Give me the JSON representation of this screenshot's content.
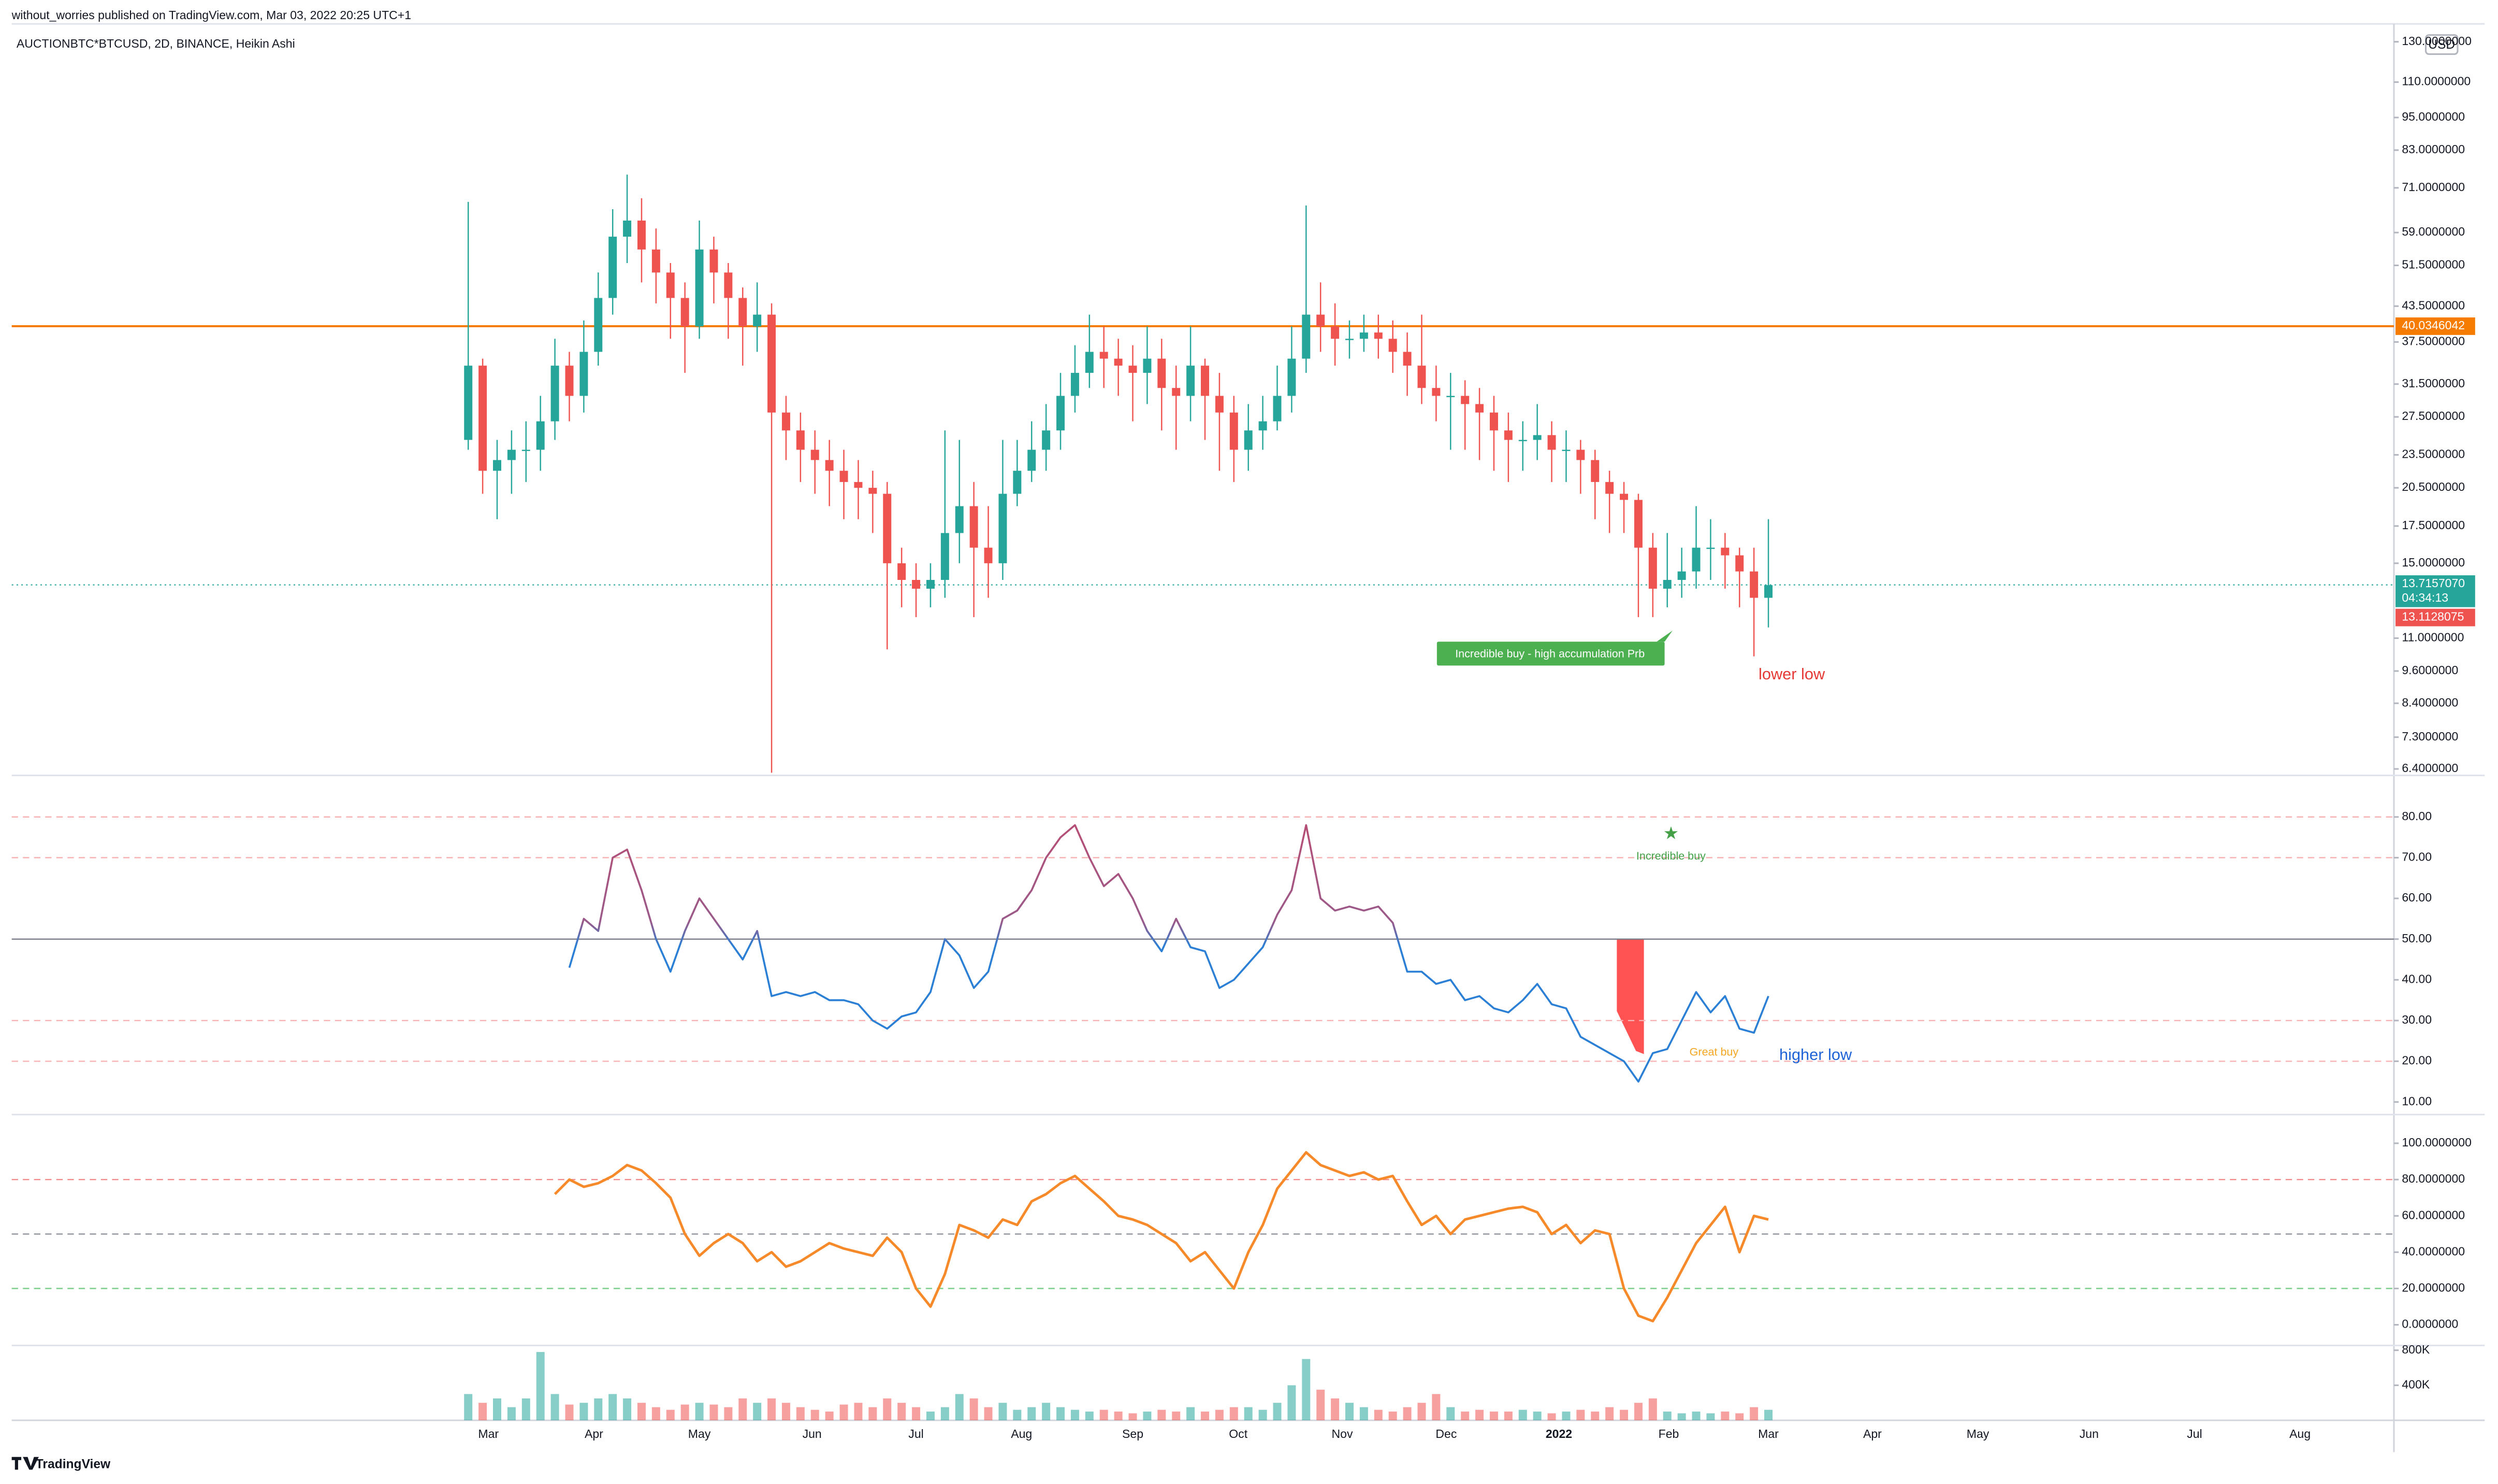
{
  "header": {
    "published": "without_worries published on TradingView.com, Mar 03, 2022 20:25 UTC+1",
    "symbol": "AUCTIONBTC*BTCUSD, 2D, BINANCE, Heikin Ashi",
    "currency": "USD",
    "brand": "TradingView"
  },
  "chart_data": [
    {
      "type": "candlestick",
      "log_scale": true,
      "up_color": "#26a69a",
      "down_color": "#ef5350",
      "open": [
        25,
        34,
        22,
        23,
        24,
        24,
        27,
        34,
        30,
        36,
        45,
        58,
        62,
        55,
        50,
        45,
        40,
        55,
        50,
        45,
        40,
        42,
        28,
        26,
        24,
        23,
        22,
        21,
        20.5,
        20,
        15,
        14,
        13.5,
        14,
        17,
        19,
        16,
        15,
        20,
        22,
        24,
        26,
        30,
        33,
        36,
        35,
        34,
        33,
        35,
        31,
        30,
        34,
        30,
        28,
        24,
        26,
        27,
        30,
        35,
        42,
        40,
        38,
        38,
        39,
        38,
        36,
        34,
        31,
        30,
        30,
        29,
        28,
        26,
        25,
        25,
        25.5,
        24,
        24,
        23,
        21,
        20,
        19.5,
        16,
        13.5,
        14,
        14.5,
        16,
        16,
        15.5,
        14.5,
        13
      ],
      "high": [
        67,
        35,
        25,
        26,
        27,
        30,
        38,
        36,
        41,
        50,
        65,
        75,
        68,
        60,
        52,
        48,
        62,
        58,
        52,
        47,
        48,
        44,
        30,
        28,
        26,
        25,
        24,
        23,
        22,
        21,
        16,
        15,
        15,
        26,
        25,
        21,
        19,
        25,
        25,
        27,
        29,
        33,
        37,
        42,
        40,
        38,
        37,
        40,
        38,
        34,
        40,
        35,
        33,
        30,
        29,
        30,
        34,
        40,
        66,
        48,
        44,
        41,
        42,
        42,
        41,
        39,
        42,
        34,
        33,
        32,
        31,
        30,
        28,
        27,
        29,
        27,
        26,
        25,
        24,
        22,
        21,
        20,
        17,
        17,
        16,
        19,
        18,
        17,
        16,
        16,
        18
      ],
      "low": [
        24,
        20,
        18,
        20,
        21,
        22,
        25,
        27,
        28,
        34,
        42,
        52,
        48,
        44,
        38,
        33,
        38,
        44,
        38,
        34,
        36,
        6.3,
        23,
        21,
        20,
        19,
        18,
        18,
        17,
        10.5,
        12.5,
        12,
        12.5,
        13,
        15,
        12,
        13,
        14,
        19,
        21,
        22,
        24,
        28,
        31,
        31,
        30,
        27,
        29,
        26,
        24,
        27,
        25,
        22,
        21,
        22,
        24,
        26,
        28,
        33,
        36,
        34,
        35,
        36,
        35,
        33,
        30,
        29,
        27,
        24,
        24,
        23,
        22,
        21,
        22,
        23,
        21,
        21,
        20,
        18,
        17,
        17,
        12,
        12,
        12.5,
        13,
        13.5,
        14,
        13.5,
        12.5,
        10.2,
        11.5
      ],
      "close": [
        34,
        22,
        23,
        24,
        24,
        27,
        34,
        30,
        36,
        45,
        58,
        62,
        55,
        50,
        45,
        40,
        55,
        50,
        45,
        40,
        42,
        28,
        26,
        24,
        23,
        22,
        21,
        20.5,
        20,
        15,
        14,
        13.5,
        14,
        17,
        19,
        16,
        15,
        20,
        22,
        24,
        26,
        30,
        33,
        36,
        35,
        34,
        33,
        35,
        31,
        30,
        34,
        30,
        28,
        24,
        26,
        27,
        30,
        35,
        42,
        40,
        38,
        38,
        39,
        38,
        36,
        34,
        31,
        30,
        30,
        29,
        28,
        26,
        25,
        25,
        25.5,
        24,
        24,
        23,
        21,
        20,
        19.5,
        16,
        13.5,
        14,
        14.5,
        16,
        16,
        15.5,
        14.5,
        13,
        13.7
      ],
      "ylim": [
        6.23,
        140
      ],
      "yticks": [
        {
          "value": 130,
          "label": "130.0000000"
        },
        {
          "value": 110,
          "label": "110.0000000"
        },
        {
          "value": 95,
          "label": "95.0000000"
        },
        {
          "value": 83,
          "label": "83.0000000"
        },
        {
          "value": 71,
          "label": "71.0000000"
        },
        {
          "value": 59,
          "label": "59.0000000"
        },
        {
          "value": 51.5,
          "label": "51.5000000"
        },
        {
          "value": 43.5,
          "label": "43.5000000"
        },
        {
          "value": 37.5,
          "label": "37.5000000"
        },
        {
          "value": 31.5,
          "label": "31.5000000"
        },
        {
          "value": 27.5,
          "label": "27.5000000"
        },
        {
          "value": 23.5,
          "label": "23.5000000"
        },
        {
          "value": 20.5,
          "label": "20.5000000"
        },
        {
          "value": 17.5,
          "label": "17.5000000"
        },
        {
          "value": 15,
          "label": "15.0000000"
        },
        {
          "value": 11,
          "label": "11.0000000"
        },
        {
          "value": 9.6,
          "label": "9.6000000"
        },
        {
          "value": 8.4,
          "label": "8.4000000"
        },
        {
          "value": 7.3,
          "label": "7.3000000"
        },
        {
          "value": 6.4,
          "label": "6.4000000"
        }
      ],
      "xlim": [
        -31.6,
        133.3
      ],
      "xticks": [
        {
          "value": 1.4,
          "label": "Mar"
        },
        {
          "value": 8.7,
          "label": "Apr"
        },
        {
          "value": 16,
          "label": "May"
        },
        {
          "value": 23.8,
          "label": "Jun"
        },
        {
          "value": 31,
          "label": "Jul"
        },
        {
          "value": 38.3,
          "label": "Aug"
        },
        {
          "value": 46,
          "label": "Sep"
        },
        {
          "value": 53.3,
          "label": "Oct"
        },
        {
          "value": 60.5,
          "label": "Nov"
        },
        {
          "value": 67.7,
          "label": "Dec"
        },
        {
          "value": 75.5,
          "label": "2022",
          "bold": true
        },
        {
          "value": 83.1,
          "label": "Feb"
        },
        {
          "value": 90,
          "label": "Mar"
        },
        {
          "value": 97.2,
          "label": "Apr"
        },
        {
          "value": 104.5,
          "label": "May"
        },
        {
          "value": 112.2,
          "label": "Jun"
        },
        {
          "value": 119.5,
          "label": "Jul"
        },
        {
          "value": 126.8,
          "label": "Aug"
        }
      ],
      "hline": {
        "value": 40.0346042,
        "label": "40.0346042",
        "color": "#f57c00"
      },
      "last_price": {
        "value": 13.715707,
        "label": "13.7157070",
        "countdown": "04:34:13",
        "color": "#26a69a"
      },
      "low_label": {
        "value": 13.1128075,
        "label": "13.1128075",
        "color": "#ef5350"
      },
      "annotations": [
        {
          "text": "Incredible buy - high accumulation Prb",
          "color": "#4caf50"
        },
        {
          "text": "lower low",
          "color": "#e53935"
        }
      ]
    },
    {
      "type": "line",
      "color": "#2b7fd4",
      "color_above": "#c4486a",
      "values": [
        null,
        null,
        null,
        null,
        null,
        null,
        null,
        43,
        55,
        52,
        70,
        72,
        62,
        50,
        42,
        52,
        60,
        55,
        50,
        45,
        52,
        36,
        37,
        36,
        37,
        35,
        35,
        34,
        30,
        28,
        31,
        32,
        37,
        50,
        46,
        38,
        42,
        55,
        57,
        62,
        70,
        75,
        78,
        70,
        63,
        66,
        60,
        52,
        47,
        55,
        48,
        47,
        38,
        40,
        44,
        48,
        56,
        62,
        78,
        60,
        57,
        58,
        57,
        58,
        54,
        42,
        42,
        39,
        40,
        35,
        36,
        33,
        32,
        35,
        39,
        34,
        33,
        26,
        24,
        22,
        20,
        15,
        22,
        23,
        30,
        37,
        32,
        36,
        28,
        27,
        36
      ],
      "ylim": [
        6.9,
        90.2
      ],
      "yticks": [
        {
          "value": 10,
          "label": "10.00"
        },
        {
          "value": 20,
          "label": "20.00"
        },
        {
          "value": 30,
          "label": "30.00"
        },
        {
          "value": 40,
          "label": "40.00"
        },
        {
          "value": 50,
          "label": "50.00"
        },
        {
          "value": 60,
          "label": "60.00"
        },
        {
          "value": 70,
          "label": "70.00"
        },
        {
          "value": 80,
          "label": "80.00"
        }
      ],
      "levels": [
        {
          "value": 80,
          "color": "#f7b3b3",
          "dashed": true
        },
        {
          "value": 70,
          "color": "#f7b3b3",
          "dashed": true
        },
        {
          "value": 50,
          "color": "#787b86",
          "dashed": false
        },
        {
          "value": 30,
          "color": "#f7b3b3",
          "dashed": true
        },
        {
          "value": 20,
          "color": "#f7b3b3",
          "dashed": true
        }
      ],
      "annotations": [
        {
          "text": "★",
          "color": "#43a047"
        },
        {
          "text": "Incredible buy",
          "color": "#43a047"
        },
        {
          "text": "Great buy",
          "color": "#f5a623"
        },
        {
          "text": "higher low",
          "color": "#1e63d6"
        }
      ]
    },
    {
      "type": "line",
      "color": "#f68a2a",
      "values": [
        null,
        null,
        null,
        null,
        null,
        null,
        72,
        80,
        76,
        78,
        82,
        88,
        85,
        78,
        70,
        50,
        38,
        45,
        50,
        45,
        35,
        40,
        32,
        35,
        40,
        45,
        42,
        40,
        38,
        48,
        40,
        20,
        10,
        28,
        55,
        52,
        48,
        58,
        55,
        68,
        72,
        78,
        82,
        75,
        68,
        60,
        58,
        55,
        50,
        45,
        35,
        40,
        30,
        20,
        40,
        55,
        75,
        85,
        95,
        88,
        85,
        82,
        84,
        80,
        82,
        68,
        55,
        60,
        50,
        58,
        60,
        62,
        64,
        65,
        62,
        50,
        55,
        45,
        52,
        50,
        20,
        5,
        2,
        15,
        30,
        45,
        55,
        65,
        40,
        60,
        58
      ],
      "ylim": [
        -11.4,
        115.8
      ],
      "yticks": [
        {
          "value": 0,
          "label": "0.0000000"
        },
        {
          "value": 20,
          "label": "20.0000000"
        },
        {
          "value": 40,
          "label": "40.0000000"
        },
        {
          "value": 60,
          "label": "60.0000000"
        },
        {
          "value": 80,
          "label": "80.0000000"
        },
        {
          "value": 100,
          "label": "100.0000000"
        }
      ],
      "levels": [
        {
          "value": 80,
          "color": "#f28b8b",
          "dashed": true
        },
        {
          "value": 50,
          "color": "#9598a1",
          "dashed": true
        },
        {
          "value": 20,
          "color": "#7ccf8a",
          "dashed": true
        }
      ]
    },
    {
      "type": "bar",
      "opacity": 0.55,
      "values": [
        300000,
        200000,
        250000,
        150000,
        250000,
        780000,
        300000,
        180000,
        200000,
        250000,
        300000,
        250000,
        200000,
        150000,
        120000,
        180000,
        200000,
        180000,
        150000,
        250000,
        200000,
        250000,
        200000,
        150000,
        120000,
        100000,
        180000,
        200000,
        150000,
        250000,
        200000,
        150000,
        100000,
        150000,
        300000,
        250000,
        150000,
        200000,
        120000,
        150000,
        200000,
        150000,
        120000,
        100000,
        120000,
        100000,
        80000,
        100000,
        120000,
        100000,
        150000,
        100000,
        120000,
        150000,
        150000,
        120000,
        200000,
        400000,
        700000,
        350000,
        250000,
        200000,
        150000,
        120000,
        100000,
        150000,
        200000,
        300000,
        150000,
        100000,
        120000,
        100000,
        100000,
        120000,
        100000,
        80000,
        100000,
        120000,
        100000,
        150000,
        120000,
        200000,
        250000,
        100000,
        80000,
        100000,
        80000,
        100000,
        80000,
        150000,
        120000
      ],
      "ylim": [
        0,
        854500
      ],
      "yticks": [
        {
          "value": 400000,
          "label": "400K"
        },
        {
          "value": 800000,
          "label": "800K"
        }
      ]
    }
  ]
}
